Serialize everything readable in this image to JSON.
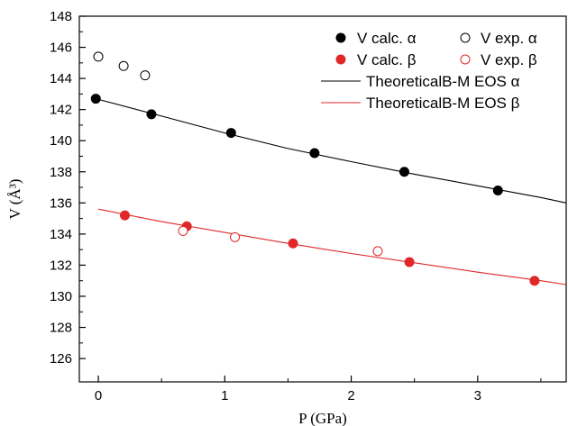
{
  "chart_data": {
    "type": "scatter",
    "xlabel": "P (GPa)",
    "ylabel": "V (Å³)",
    "xlim": [
      -0.15,
      3.7
    ],
    "ylim": [
      124.5,
      148
    ],
    "xticks": [
      0,
      1,
      2,
      3
    ],
    "yticks": [
      126,
      128,
      130,
      132,
      134,
      136,
      138,
      140,
      142,
      144,
      146,
      148
    ],
    "legend_position": "top-right",
    "series": [
      {
        "name": "V calc. α",
        "kind": "points",
        "marker": "filled",
        "color": "#000000",
        "x": [
          -0.02,
          0.42,
          1.05,
          1.71,
          2.42,
          3.16
        ],
        "y": [
          142.7,
          141.7,
          140.5,
          139.2,
          138.0,
          136.8
        ]
      },
      {
        "name": "V exp. α",
        "kind": "points",
        "marker": "open",
        "color": "#000000",
        "x": [
          0.0,
          0.2,
          0.37
        ],
        "y": [
          145.4,
          144.8,
          144.2
        ]
      },
      {
        "name": "V calc. β",
        "kind": "points",
        "marker": "filled",
        "color": "#e02828",
        "x": [
          0.21,
          0.7,
          1.54,
          2.46,
          3.45
        ],
        "y": [
          135.2,
          134.5,
          133.4,
          132.2,
          131.0
        ]
      },
      {
        "name": "V exp. β",
        "kind": "points",
        "marker": "open",
        "color": "#e02828",
        "x": [
          0.67,
          1.08,
          2.21
        ],
        "y": [
          134.2,
          133.8,
          132.9
        ]
      },
      {
        "name": "TheoreticalB-M EOS α",
        "kind": "line",
        "color": "#000000",
        "x": [
          -0.02,
          0.5,
          1.0,
          1.5,
          2.0,
          2.5,
          3.0,
          3.5,
          3.7
        ],
        "y": [
          142.7,
          141.58,
          140.5,
          139.5,
          138.65,
          137.85,
          137.1,
          136.35,
          136.0
        ]
      },
      {
        "name": "TheoreticalB-M EOS β",
        "kind": "line",
        "color": "#e02828",
        "x": [
          0.0,
          0.5,
          1.0,
          1.5,
          2.0,
          2.5,
          3.0,
          3.5,
          3.7
        ],
        "y": [
          135.6,
          134.8,
          134.1,
          133.4,
          132.75,
          132.15,
          131.55,
          131.0,
          130.75
        ]
      }
    ]
  }
}
